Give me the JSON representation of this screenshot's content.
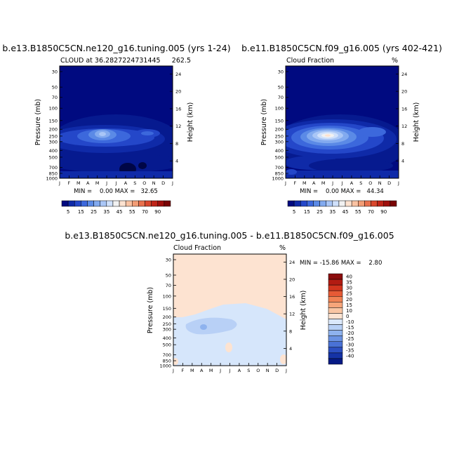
{
  "chart_data": [
    {
      "type": "heatmap",
      "title": "b.e13.B1850C5CN.ne120_g16.tuning.005 (yrs 1-24)",
      "subtitle_left": "CLOUD at 36.2827224731445",
      "subtitle_right": "262.5",
      "xlabel": "",
      "ylabel": "Pressure (mb)",
      "ylabel_right": "Height (km)",
      "months": [
        "J",
        "F",
        "M",
        "A",
        "M",
        "J",
        "J",
        "A",
        "S",
        "O",
        "N",
        "D",
        "J"
      ],
      "pressure_ticks": [
        30,
        50,
        70,
        100,
        150,
        200,
        250,
        300,
        400,
        500,
        700,
        850,
        1000
      ],
      "height_ticks": [
        24,
        20,
        16,
        12,
        8,
        4
      ],
      "stats": "MIN =    0.00 MAX =   32.65",
      "min": 0.0,
      "max": 32.65
    },
    {
      "type": "heatmap",
      "title": "b.e11.B1850C5CN.f09_g16.005 (yrs 402-421)",
      "subtitle_left": "Cloud Fraction",
      "subtitle_right": "%",
      "xlabel": "",
      "ylabel": "Pressure (mb)",
      "ylabel_right": "Height (km)",
      "months": [
        "J",
        "F",
        "M",
        "A",
        "M",
        "J",
        "J",
        "A",
        "S",
        "O",
        "N",
        "D",
        "J"
      ],
      "pressure_ticks": [
        30,
        50,
        70,
        100,
        150,
        200,
        250,
        300,
        400,
        500,
        700,
        850,
        1000
      ],
      "height_ticks": [
        24,
        20,
        16,
        12,
        8,
        4
      ],
      "stats": "MIN =    0.00 MAX =   44.34",
      "min": 0.0,
      "max": 44.34
    },
    {
      "type": "heatmap",
      "title": "b.e13.B1850C5CN.ne120_g16.tuning.005 - b.e11.B1850C5CN.f09_g16.005",
      "subtitle_left": "Cloud Fraction",
      "subtitle_right": "%",
      "xlabel": "",
      "ylabel": "Pressure (mb)",
      "ylabel_right": "Height (km)",
      "months": [
        "J",
        "F",
        "M",
        "A",
        "M",
        "J",
        "J",
        "A",
        "S",
        "O",
        "N",
        "D",
        "J"
      ],
      "pressure_ticks": [
        30,
        50,
        70,
        100,
        150,
        200,
        250,
        300,
        400,
        500,
        700,
        850,
        1000
      ],
      "height_ticks": [
        24,
        20,
        16,
        12,
        8,
        4
      ],
      "stats": "MIN = -15.86 MAX =    2.80",
      "min": -15.86,
      "max": 2.8
    }
  ],
  "colorbars": {
    "abs": {
      "labels": [
        "5",
        "15",
        "25",
        "35",
        "45",
        "55",
        "70",
        "90"
      ],
      "colors": [
        "#000a80",
        "#0f2aa8",
        "#2447c9",
        "#3c68dc",
        "#5b8ae6",
        "#82aaef",
        "#a9c6f6",
        "#cfe0fb",
        "#f1f1f1",
        "#fde2d0",
        "#f9c2a2",
        "#f29d76",
        "#e8714d",
        "#d9472d",
        "#bf2418",
        "#a00f0c",
        "#7a0404"
      ]
    },
    "diff": {
      "labels": [
        "40",
        "35",
        "30",
        "25",
        "20",
        "15",
        "10",
        "0",
        "-10",
        "-15",
        "-20",
        "-25",
        "-30",
        "-35",
        "-40"
      ],
      "colors": [
        "#8c0d0d",
        "#b21b12",
        "#d2351e",
        "#e65a35",
        "#f08254",
        "#f6a57a",
        "#f9c5a3",
        "#fde3d1",
        "#dbe8fb",
        "#b8d0f6",
        "#8eb2ee",
        "#6a92e3",
        "#4a72d6",
        "#2d50c2",
        "#1533a6",
        "#061a85"
      ]
    }
  }
}
